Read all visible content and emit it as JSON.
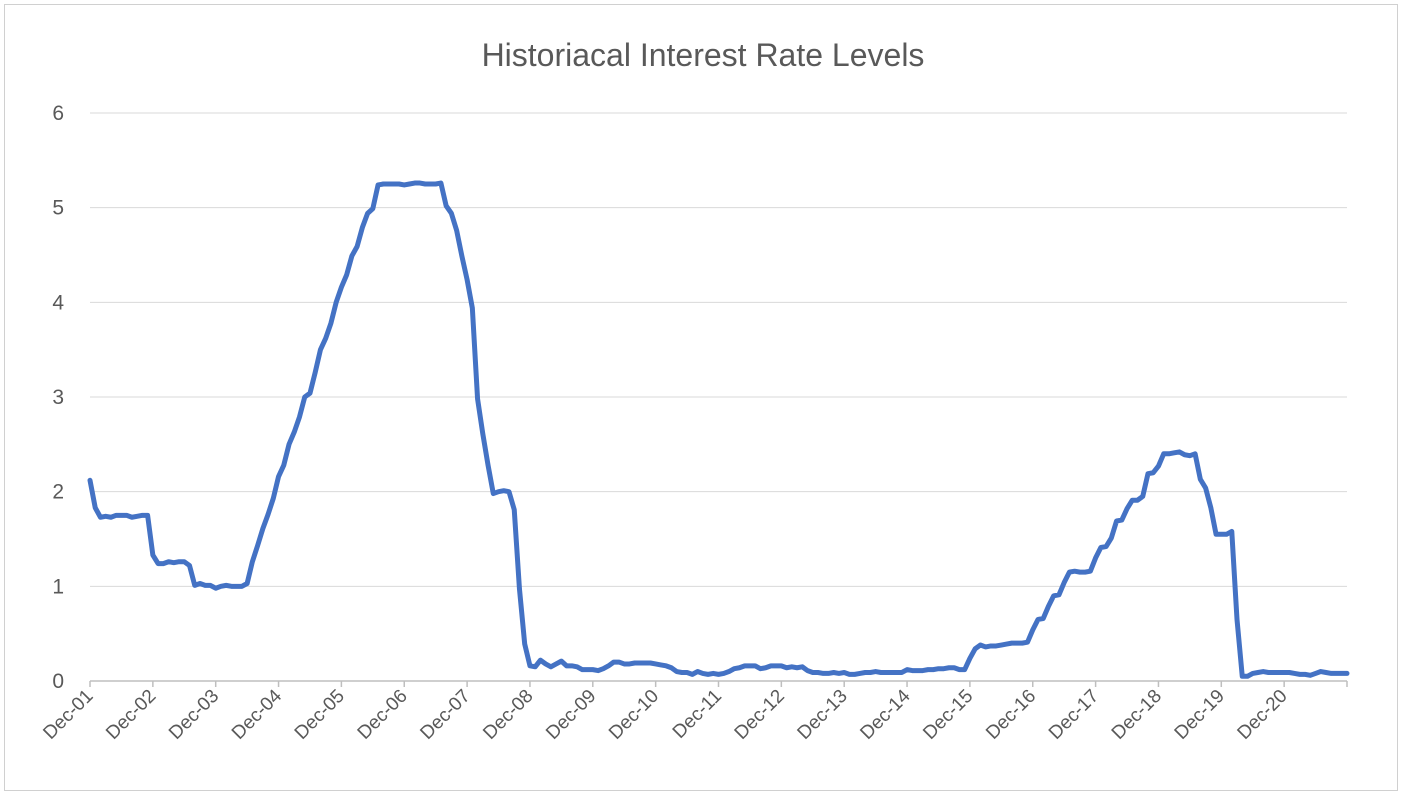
{
  "chart_data": {
    "type": "line",
    "title": "Historiacal Interest Rate Levels",
    "xlabel": "",
    "ylabel": "",
    "ylim": [
      0,
      6
    ],
    "yticks": [
      "0",
      "1",
      "2",
      "3",
      "4",
      "5",
      "6"
    ],
    "xticks": [
      "Dec-01",
      "Dec-02",
      "Dec-03",
      "Dec-04",
      "Dec-05",
      "Dec-06",
      "Dec-07",
      "Dec-08",
      "Dec-09",
      "Dec-10",
      "Dec-11",
      "Dec-12",
      "Dec-13",
      "Dec-14",
      "Dec-15",
      "Dec-16",
      "Dec-17",
      "Dec-18",
      "Dec-19",
      "Dec-20"
    ],
    "grid": true,
    "legend": "none",
    "colors": {
      "line": "#4472C4",
      "grid": "#d9d9d9",
      "axis": "#bfbfbf",
      "text": "#595959"
    },
    "series": [
      {
        "points": [
          [
            "Dec-01",
            2.12
          ],
          [
            "Jan-02",
            1.83
          ],
          [
            "Feb-02",
            1.73
          ],
          [
            "Mar-02",
            1.74
          ],
          [
            "Apr-02",
            1.73
          ],
          [
            "May-02",
            1.75
          ],
          [
            "Jun-02",
            1.75
          ],
          [
            "Jul-02",
            1.75
          ],
          [
            "Aug-02",
            1.73
          ],
          [
            "Sep-02",
            1.74
          ],
          [
            "Oct-02",
            1.75
          ],
          [
            "Nov-02",
            1.75
          ],
          [
            "Dec-02",
            1.33
          ],
          [
            "Jan-03",
            1.24
          ],
          [
            "Feb-03",
            1.24
          ],
          [
            "Mar-03",
            1.26
          ],
          [
            "Apr-03",
            1.25
          ],
          [
            "May-03",
            1.26
          ],
          [
            "Jun-03",
            1.26
          ],
          [
            "Jul-03",
            1.22
          ],
          [
            "Aug-03",
            1.01
          ],
          [
            "Sep-03",
            1.03
          ],
          [
            "Oct-03",
            1.01
          ],
          [
            "Nov-03",
            1.01
          ],
          [
            "Dec-03",
            0.98
          ],
          [
            "Jan-04",
            1.0
          ],
          [
            "Feb-04",
            1.01
          ],
          [
            "Mar-04",
            1.0
          ],
          [
            "Apr-04",
            1.0
          ],
          [
            "May-04",
            1.0
          ],
          [
            "Jun-04",
            1.03
          ],
          [
            "Jul-04",
            1.26
          ],
          [
            "Aug-04",
            1.43
          ],
          [
            "Sep-04",
            1.61
          ],
          [
            "Oct-04",
            1.76
          ],
          [
            "Nov-04",
            1.93
          ],
          [
            "Dec-04",
            2.16
          ],
          [
            "Jan-05",
            2.28
          ],
          [
            "Feb-05",
            2.5
          ],
          [
            "Mar-05",
            2.63
          ],
          [
            "Apr-05",
            2.79
          ],
          [
            "May-05",
            3.0
          ],
          [
            "Jun-05",
            3.04
          ],
          [
            "Jul-05",
            3.26
          ],
          [
            "Aug-05",
            3.5
          ],
          [
            "Sep-05",
            3.62
          ],
          [
            "Oct-05",
            3.78
          ],
          [
            "Nov-05",
            4.0
          ],
          [
            "Dec-05",
            4.16
          ],
          [
            "Jan-06",
            4.29
          ],
          [
            "Feb-06",
            4.49
          ],
          [
            "Mar-06",
            4.59
          ],
          [
            "Apr-06",
            4.79
          ],
          [
            "May-06",
            4.94
          ],
          [
            "Jun-06",
            4.99
          ],
          [
            "Jul-06",
            5.24
          ],
          [
            "Aug-06",
            5.25
          ],
          [
            "Sep-06",
            5.25
          ],
          [
            "Oct-06",
            5.25
          ],
          [
            "Nov-06",
            5.25
          ],
          [
            "Dec-06",
            5.24
          ],
          [
            "Jan-07",
            5.25
          ],
          [
            "Feb-07",
            5.26
          ],
          [
            "Mar-07",
            5.26
          ],
          [
            "Apr-07",
            5.25
          ],
          [
            "May-07",
            5.25
          ],
          [
            "Jun-07",
            5.25
          ],
          [
            "Jul-07",
            5.26
          ],
          [
            "Aug-07",
            5.02
          ],
          [
            "Sep-07",
            4.94
          ],
          [
            "Oct-07",
            4.76
          ],
          [
            "Nov-07",
            4.49
          ],
          [
            "Dec-07",
            4.24
          ],
          [
            "Jan-08",
            3.94
          ],
          [
            "Feb-08",
            2.98
          ],
          [
            "Mar-08",
            2.61
          ],
          [
            "Apr-08",
            2.28
          ],
          [
            "May-08",
            1.98
          ],
          [
            "Jun-08",
            2.0
          ],
          [
            "Jul-08",
            2.01
          ],
          [
            "Aug-08",
            2.0
          ],
          [
            "Sep-08",
            1.81
          ],
          [
            "Oct-08",
            0.97
          ],
          [
            "Nov-08",
            0.39
          ],
          [
            "Dec-08",
            0.16
          ],
          [
            "Jan-09",
            0.15
          ],
          [
            "Feb-09",
            0.22
          ],
          [
            "Mar-09",
            0.18
          ],
          [
            "Apr-09",
            0.15
          ],
          [
            "May-09",
            0.18
          ],
          [
            "Jun-09",
            0.21
          ],
          [
            "Jul-09",
            0.16
          ],
          [
            "Aug-09",
            0.16
          ],
          [
            "Sep-09",
            0.15
          ],
          [
            "Oct-09",
            0.12
          ],
          [
            "Nov-09",
            0.12
          ],
          [
            "Dec-09",
            0.12
          ],
          [
            "Jan-10",
            0.11
          ],
          [
            "Feb-10",
            0.13
          ],
          [
            "Mar-10",
            0.16
          ],
          [
            "Apr-10",
            0.2
          ],
          [
            "May-10",
            0.2
          ],
          [
            "Jun-10",
            0.18
          ],
          [
            "Jul-10",
            0.18
          ],
          [
            "Aug-10",
            0.19
          ],
          [
            "Sep-10",
            0.19
          ],
          [
            "Oct-10",
            0.19
          ],
          [
            "Nov-10",
            0.19
          ],
          [
            "Dec-10",
            0.18
          ],
          [
            "Jan-11",
            0.17
          ],
          [
            "Feb-11",
            0.16
          ],
          [
            "Mar-11",
            0.14
          ],
          [
            "Apr-11",
            0.1
          ],
          [
            "May-11",
            0.09
          ],
          [
            "Jun-11",
            0.09
          ],
          [
            "Jul-11",
            0.07
          ],
          [
            "Aug-11",
            0.1
          ],
          [
            "Sep-11",
            0.08
          ],
          [
            "Oct-11",
            0.07
          ],
          [
            "Nov-11",
            0.08
          ],
          [
            "Dec-11",
            0.07
          ],
          [
            "Jan-12",
            0.08
          ],
          [
            "Feb-12",
            0.1
          ],
          [
            "Mar-12",
            0.13
          ],
          [
            "Apr-12",
            0.14
          ],
          [
            "May-12",
            0.16
          ],
          [
            "Jun-12",
            0.16
          ],
          [
            "Jul-12",
            0.16
          ],
          [
            "Aug-12",
            0.13
          ],
          [
            "Sep-12",
            0.14
          ],
          [
            "Oct-12",
            0.16
          ],
          [
            "Nov-12",
            0.16
          ],
          [
            "Dec-12",
            0.16
          ],
          [
            "Jan-13",
            0.14
          ],
          [
            "Feb-13",
            0.15
          ],
          [
            "Mar-13",
            0.14
          ],
          [
            "Apr-13",
            0.15
          ],
          [
            "May-13",
            0.11
          ],
          [
            "Jun-13",
            0.09
          ],
          [
            "Jul-13",
            0.09
          ],
          [
            "Aug-13",
            0.08
          ],
          [
            "Sep-13",
            0.08
          ],
          [
            "Oct-13",
            0.09
          ],
          [
            "Nov-13",
            0.08
          ],
          [
            "Dec-13",
            0.09
          ],
          [
            "Jan-14",
            0.07
          ],
          [
            "Feb-14",
            0.07
          ],
          [
            "Mar-14",
            0.08
          ],
          [
            "Apr-14",
            0.09
          ],
          [
            "May-14",
            0.09
          ],
          [
            "Jun-14",
            0.1
          ],
          [
            "Jul-14",
            0.09
          ],
          [
            "Aug-14",
            0.09
          ],
          [
            "Sep-14",
            0.09
          ],
          [
            "Oct-14",
            0.09
          ],
          [
            "Nov-14",
            0.09
          ],
          [
            "Dec-14",
            0.12
          ],
          [
            "Jan-15",
            0.11
          ],
          [
            "Feb-15",
            0.11
          ],
          [
            "Mar-15",
            0.11
          ],
          [
            "Apr-15",
            0.12
          ],
          [
            "May-15",
            0.12
          ],
          [
            "Jun-15",
            0.13
          ],
          [
            "Jul-15",
            0.13
          ],
          [
            "Aug-15",
            0.14
          ],
          [
            "Sep-15",
            0.14
          ],
          [
            "Oct-15",
            0.12
          ],
          [
            "Nov-15",
            0.12
          ],
          [
            "Dec-15",
            0.24
          ],
          [
            "Jan-16",
            0.34
          ],
          [
            "Feb-16",
            0.38
          ],
          [
            "Mar-16",
            0.36
          ],
          [
            "Apr-16",
            0.37
          ],
          [
            "May-16",
            0.37
          ],
          [
            "Jun-16",
            0.38
          ],
          [
            "Jul-16",
            0.39
          ],
          [
            "Aug-16",
            0.4
          ],
          [
            "Sep-16",
            0.4
          ],
          [
            "Oct-16",
            0.4
          ],
          [
            "Nov-16",
            0.41
          ],
          [
            "Dec-16",
            0.54
          ],
          [
            "Jan-17",
            0.65
          ],
          [
            "Feb-17",
            0.66
          ],
          [
            "Mar-17",
            0.79
          ],
          [
            "Apr-17",
            0.9
          ],
          [
            "May-17",
            0.91
          ],
          [
            "Jun-17",
            1.04
          ],
          [
            "Jul-17",
            1.15
          ],
          [
            "Aug-17",
            1.16
          ],
          [
            "Sep-17",
            1.15
          ],
          [
            "Oct-17",
            1.15
          ],
          [
            "Nov-17",
            1.16
          ],
          [
            "Dec-17",
            1.3
          ],
          [
            "Jan-18",
            1.41
          ],
          [
            "Feb-18",
            1.42
          ],
          [
            "Mar-18",
            1.51
          ],
          [
            "Apr-18",
            1.69
          ],
          [
            "May-18",
            1.7
          ],
          [
            "Jun-18",
            1.82
          ],
          [
            "Jul-18",
            1.91
          ],
          [
            "Aug-18",
            1.91
          ],
          [
            "Sep-18",
            1.95
          ],
          [
            "Oct-18",
            2.19
          ],
          [
            "Nov-18",
            2.2
          ],
          [
            "Dec-18",
            2.27
          ],
          [
            "Jan-19",
            2.4
          ],
          [
            "Feb-19",
            2.4
          ],
          [
            "Mar-19",
            2.41
          ],
          [
            "Apr-19",
            2.42
          ],
          [
            "May-19",
            2.39
          ],
          [
            "Jun-19",
            2.38
          ],
          [
            "Jul-19",
            2.4
          ],
          [
            "Aug-19",
            2.13
          ],
          [
            "Sep-19",
            2.04
          ],
          [
            "Oct-19",
            1.83
          ],
          [
            "Nov-19",
            1.55
          ],
          [
            "Dec-19",
            1.55
          ],
          [
            "Jan-20",
            1.55
          ],
          [
            "Feb-20",
            1.58
          ],
          [
            "Mar-20",
            0.65
          ],
          [
            "Apr-20",
            0.05
          ],
          [
            "May-20",
            0.05
          ],
          [
            "Jun-20",
            0.08
          ],
          [
            "Jul-20",
            0.09
          ],
          [
            "Aug-20",
            0.1
          ],
          [
            "Sep-20",
            0.09
          ],
          [
            "Oct-20",
            0.09
          ],
          [
            "Nov-20",
            0.09
          ],
          [
            "Dec-20",
            0.09
          ],
          [
            "Jan-21",
            0.09
          ],
          [
            "Feb-21",
            0.08
          ],
          [
            "Mar-21",
            0.07
          ],
          [
            "Apr-21",
            0.07
          ],
          [
            "May-21",
            0.06
          ],
          [
            "Jun-21",
            0.08
          ],
          [
            "Jul-21",
            0.1
          ],
          [
            "Aug-21",
            0.09
          ],
          [
            "Sep-21",
            0.08
          ],
          [
            "Oct-21",
            0.08
          ],
          [
            "Nov-21",
            0.08
          ],
          [
            "Dec-21",
            0.08
          ]
        ]
      }
    ]
  }
}
